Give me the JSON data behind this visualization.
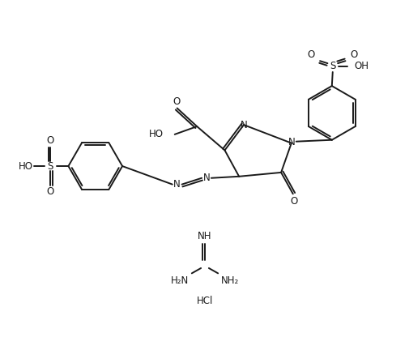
{
  "bg_color": "#ffffff",
  "line_color": "#1a1a1a",
  "line_width": 1.4,
  "font_size": 8.5,
  "figsize": [
    5.05,
    4.16
  ],
  "dpi": 100,
  "xlim": [
    0,
    10.1
  ],
  "ylim": [
    0,
    8.32
  ]
}
